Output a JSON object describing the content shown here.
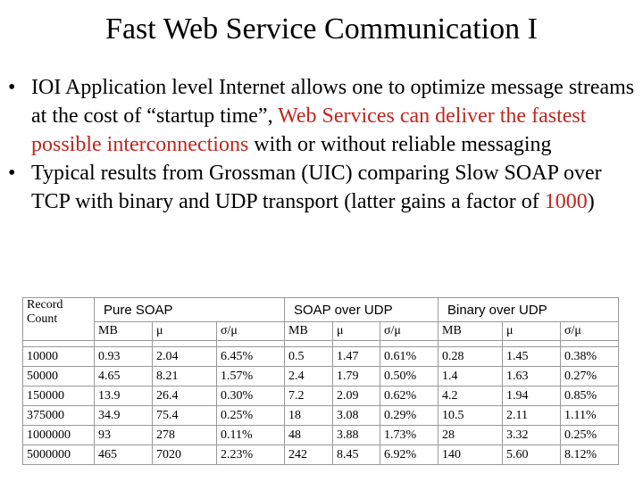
{
  "title": "Fast Web Service Communication I",
  "bullets": [
    {
      "segments": [
        {
          "text": "IOI Application level Internet allows one to optimize message streams at the cost of “startup time”, "
        },
        {
          "text": "Web Services can deliver the fastest possible interconnections",
          "highlight": true
        },
        {
          "text": " with or without reliable messaging"
        }
      ]
    },
    {
      "segments": [
        {
          "text": "Typical results from Grossman (UIC) comparing Slow SOAP over TCP with binary and UDP transport (latter gains a factor of "
        },
        {
          "text": "1000",
          "highlight": true
        },
        {
          "text": ")"
        }
      ]
    }
  ],
  "table": {
    "corner": "Record Count",
    "groups": [
      "Pure SOAP",
      "SOAP over UDP",
      "Binary over UDP"
    ],
    "subheaders": [
      "MB",
      "μ",
      "σ/μ",
      "MB",
      "μ",
      "σ/μ",
      "MB",
      "μ",
      "σ/μ"
    ],
    "rows": [
      [
        "10000",
        "0.93",
        "2.04",
        "6.45%",
        "0.5",
        "1.47",
        "0.61%",
        "0.28",
        "1.45",
        "0.38%"
      ],
      [
        "50000",
        "4.65",
        "8.21",
        "1.57%",
        "2.4",
        "1.79",
        "0.50%",
        "1.4",
        "1.63",
        "0.27%"
      ],
      [
        "150000",
        "13.9",
        "26.4",
        "0.30%",
        "7.2",
        "2.09",
        "0.62%",
        "4.2",
        "1.94",
        "0.85%"
      ],
      [
        "375000",
        "34.9",
        "75.4",
        "0.25%",
        "18",
        "3.08",
        "0.29%",
        "10.5",
        "2.11",
        "1.11%"
      ],
      [
        "1000000",
        "93",
        "278",
        "0.11%",
        "48",
        "3.88",
        "1.73%",
        "28",
        "3.32",
        "0.25%"
      ],
      [
        "5000000",
        "465",
        "7020",
        "2.23%",
        "242",
        "8.45",
        "6.92%",
        "140",
        "5.60",
        "8.12%"
      ]
    ]
  }
}
